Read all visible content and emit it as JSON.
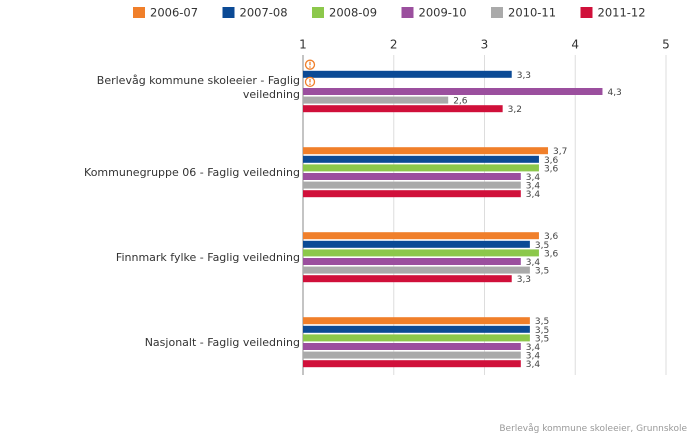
{
  "chart_data": {
    "type": "hbar",
    "categories": [
      "Berlevåg kommune skoleeier - Faglig veiledning",
      "Kommunegruppe 06 - Faglig veiledning",
      "Finnmark fylke - Faglig veiledning",
      "Nasjonalt - Faglig veiledning"
    ],
    "series": [
      {
        "name": "2006-07",
        "color": "#f07f2a",
        "values": [
          null,
          3.7,
          3.6,
          3.5
        ],
        "value_labels": [
          null,
          "3,7",
          "3,6",
          "3,5"
        ]
      },
      {
        "name": "2007-08",
        "color": "#0b4a95",
        "values": [
          3.3,
          3.6,
          3.5,
          3.5
        ],
        "value_labels": [
          "3,3",
          "3,6",
          "3,5",
          "3,5"
        ]
      },
      {
        "name": "2008-09",
        "color": "#8cc84b",
        "values": [
          null,
          3.6,
          3.6,
          3.5
        ],
        "value_labels": [
          null,
          "3,6",
          "3,6",
          "3,5"
        ]
      },
      {
        "name": "2009-10",
        "color": "#9b4f9e",
        "values": [
          4.3,
          3.4,
          3.4,
          3.4
        ],
        "value_labels": [
          "4,3",
          "3,4",
          "3,4",
          "3,4"
        ]
      },
      {
        "name": "2010-11",
        "color": "#aaaaaa",
        "values": [
          2.6,
          3.4,
          3.5,
          3.4
        ],
        "value_labels": [
          "2,6",
          "3,4",
          "3,5",
          "3,4"
        ]
      },
      {
        "name": "2011-12",
        "color": "#d0103a",
        "values": [
          3.2,
          3.4,
          3.3,
          3.4
        ],
        "value_labels": [
          "3,2",
          "3,4",
          "3,3",
          "3,4"
        ]
      }
    ],
    "xlim": [
      1,
      5
    ],
    "xticks": [
      1,
      2,
      3,
      4,
      5
    ],
    "grid": true,
    "footer": "Berlevåg kommune skoleeier, Grunnskole"
  }
}
